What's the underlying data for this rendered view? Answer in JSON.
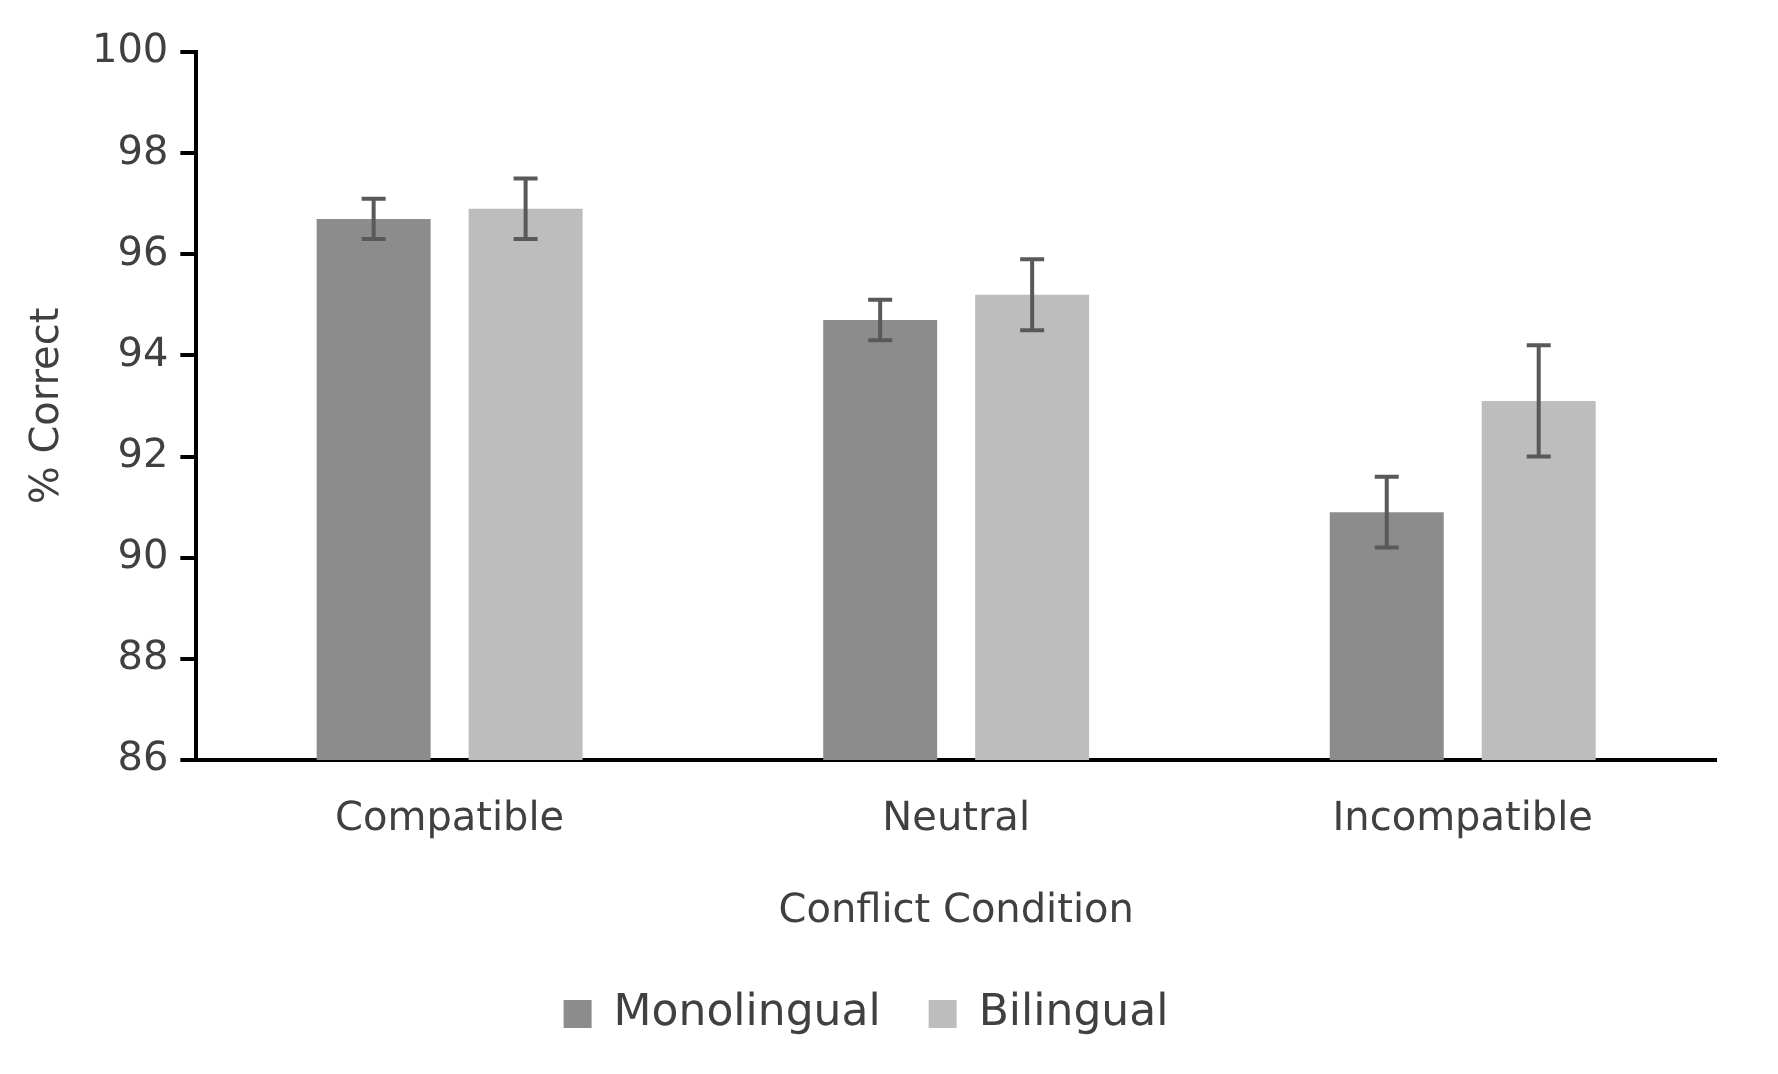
{
  "chart_data": {
    "type": "bar",
    "xlabel": "Conflict Condition",
    "ylabel": "% Correct",
    "categories": [
      "Compatible",
      "Neutral",
      "Incompatible"
    ],
    "series": [
      {
        "name": "Monolingual",
        "color": "#8c8c8c",
        "values": [
          96.7,
          94.7,
          90.9
        ],
        "errors": [
          0.4,
          0.4,
          0.7
        ]
      },
      {
        "name": "Bilingual",
        "color": "#bdbdbd",
        "values": [
          96.9,
          95.2,
          93.1
        ],
        "errors": [
          0.6,
          0.7,
          1.1
        ]
      }
    ],
    "ylim": [
      86,
      100
    ],
    "yticks": [
      86,
      88,
      90,
      92,
      94,
      96,
      98,
      100
    ],
    "grid": false,
    "legend": "bottom"
  }
}
